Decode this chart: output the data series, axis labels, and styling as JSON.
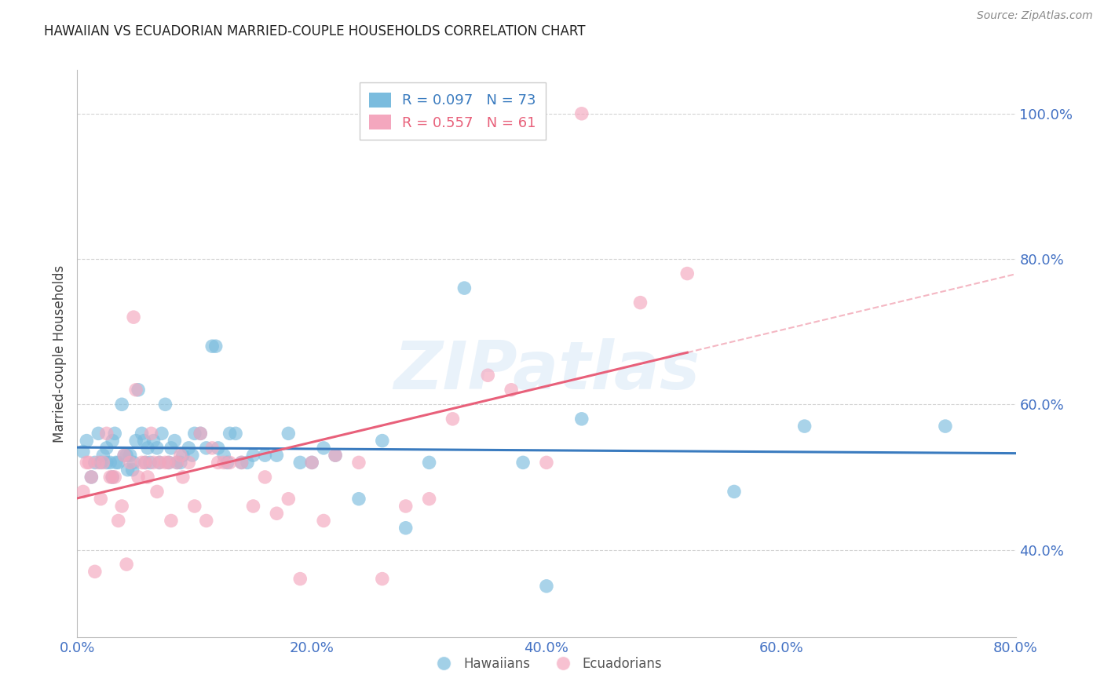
{
  "title": "HAWAIIAN VS ECUADORIAN MARRIED-COUPLE HOUSEHOLDS CORRELATION CHART",
  "source": "Source: ZipAtlas.com",
  "ylabel_label": "Married-couple Households",
  "x_min": 0.0,
  "x_max": 0.8,
  "y_min": 0.28,
  "y_max": 1.06,
  "x_ticks": [
    0.0,
    0.2,
    0.4,
    0.6,
    0.8
  ],
  "y_ticks": [
    0.4,
    0.6,
    0.8,
    1.0
  ],
  "hawaiians_color": "#7bbcde",
  "ecuadorians_color": "#f4a7be",
  "hawaiians_line_color": "#3a7bbf",
  "ecuadorians_line_color": "#e8607a",
  "hawaiians_line_dashed_color": "#bbccdd",
  "legend_hawaiians_R": "0.097",
  "legend_hawaiians_N": "73",
  "legend_ecuadorians_R": "0.557",
  "legend_ecuadorians_N": "61",
  "watermark": "ZIPatlas",
  "hawaiians_x": [
    0.005,
    0.008,
    0.012,
    0.015,
    0.018,
    0.02,
    0.022,
    0.025,
    0.025,
    0.028,
    0.03,
    0.03,
    0.032,
    0.033,
    0.035,
    0.038,
    0.04,
    0.042,
    0.043,
    0.045,
    0.047,
    0.048,
    0.05,
    0.052,
    0.055,
    0.057,
    0.058,
    0.06,
    0.062,
    0.065,
    0.068,
    0.07,
    0.072,
    0.075,
    0.078,
    0.08,
    0.083,
    0.085,
    0.088,
    0.09,
    0.095,
    0.098,
    0.1,
    0.105,
    0.11,
    0.115,
    0.118,
    0.12,
    0.125,
    0.128,
    0.13,
    0.135,
    0.14,
    0.145,
    0.15,
    0.16,
    0.17,
    0.18,
    0.19,
    0.2,
    0.21,
    0.22,
    0.24,
    0.26,
    0.28,
    0.3,
    0.33,
    0.38,
    0.4,
    0.43,
    0.56,
    0.62,
    0.74
  ],
  "hawaiians_y": [
    0.535,
    0.55,
    0.5,
    0.52,
    0.56,
    0.52,
    0.53,
    0.52,
    0.54,
    0.52,
    0.5,
    0.55,
    0.56,
    0.52,
    0.52,
    0.6,
    0.53,
    0.53,
    0.51,
    0.53,
    0.51,
    0.52,
    0.55,
    0.62,
    0.56,
    0.55,
    0.52,
    0.54,
    0.52,
    0.55,
    0.54,
    0.52,
    0.56,
    0.6,
    0.52,
    0.54,
    0.55,
    0.52,
    0.52,
    0.53,
    0.54,
    0.53,
    0.56,
    0.56,
    0.54,
    0.68,
    0.68,
    0.54,
    0.53,
    0.52,
    0.56,
    0.56,
    0.52,
    0.52,
    0.53,
    0.53,
    0.53,
    0.56,
    0.52,
    0.52,
    0.54,
    0.53,
    0.47,
    0.55,
    0.43,
    0.52,
    0.76,
    0.52,
    0.35,
    0.58,
    0.48,
    0.57,
    0.57
  ],
  "ecuadorians_x": [
    0.005,
    0.008,
    0.01,
    0.012,
    0.015,
    0.018,
    0.02,
    0.022,
    0.025,
    0.028,
    0.03,
    0.032,
    0.035,
    0.038,
    0.04,
    0.042,
    0.045,
    0.048,
    0.05,
    0.052,
    0.055,
    0.058,
    0.06,
    0.063,
    0.065,
    0.068,
    0.07,
    0.075,
    0.078,
    0.08,
    0.085,
    0.088,
    0.09,
    0.095,
    0.1,
    0.105,
    0.11,
    0.115,
    0.12,
    0.125,
    0.13,
    0.14,
    0.15,
    0.16,
    0.17,
    0.18,
    0.19,
    0.2,
    0.21,
    0.22,
    0.24,
    0.26,
    0.28,
    0.3,
    0.32,
    0.35,
    0.37,
    0.4,
    0.43,
    0.48,
    0.52
  ],
  "ecuadorians_y": [
    0.48,
    0.52,
    0.52,
    0.5,
    0.37,
    0.52,
    0.47,
    0.52,
    0.56,
    0.5,
    0.5,
    0.5,
    0.44,
    0.46,
    0.53,
    0.38,
    0.52,
    0.72,
    0.62,
    0.5,
    0.52,
    0.52,
    0.5,
    0.56,
    0.52,
    0.48,
    0.52,
    0.52,
    0.52,
    0.44,
    0.52,
    0.53,
    0.5,
    0.52,
    0.46,
    0.56,
    0.44,
    0.54,
    0.52,
    0.52,
    0.52,
    0.52,
    0.46,
    0.5,
    0.45,
    0.47,
    0.36,
    0.52,
    0.44,
    0.53,
    0.52,
    0.36,
    0.46,
    0.47,
    0.58,
    0.64,
    0.62,
    0.52,
    1.0,
    0.74,
    0.78
  ],
  "background_color": "#ffffff",
  "grid_color": "#d0d0d0",
  "title_color": "#222222",
  "tick_label_color": "#4472c4"
}
